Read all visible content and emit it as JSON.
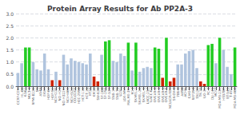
{
  "chart_data": {
    "type": "bar",
    "title": "Protein Array Results for Ab PP2A-3",
    "categories": [
      "CCRF-CEM",
      "HL-60",
      "K-562",
      "MOLT-4",
      "RPMI-8226",
      "SR",
      "A549",
      "EKVX",
      "HOP-62",
      "HOP-92",
      "NCI-H226",
      "NCI-H23",
      "NCI-H322M",
      "NCI-H460",
      "NCI-H522",
      "COLO205",
      "HCC-2998",
      "HCT-116",
      "HCT-15",
      "HT29",
      "KM12",
      "SW-620",
      "SF-268",
      "SF-295",
      "SF-539",
      "SNB-19",
      "SNB-75",
      "U251",
      "LOX-IMVI",
      "MALME-3M",
      "M14",
      "SK-MEL-2",
      "SK-MEL-28",
      "SK-MEL-5",
      "UACC-257",
      "UACC-62",
      "OVCAR-3",
      "OVCAR-4",
      "OVCAR-5",
      "OVCAR-8",
      "NCI/ADR-RES",
      "SK-OV-3",
      "786-0",
      "A498",
      "ACHN",
      "CAKI-1",
      "RXF393",
      "SN12C",
      "TK-10",
      "UO-31",
      "PC-3",
      "DU-145",
      "MCF7",
      "MDA-MB-231",
      "HS578T",
      "BT-549",
      "T-47D",
      "MDA-MB-468"
    ],
    "values": [
      0.55,
      0.95,
      1.6,
      1.6,
      1.0,
      0.7,
      0.65,
      1.35,
      0.7,
      0.25,
      0.6,
      0.25,
      1.3,
      0.9,
      1.15,
      1.05,
      1.0,
      0.95,
      0.9,
      1.35,
      0.4,
      0.2,
      1.3,
      1.85,
      1.9,
      1.05,
      1.0,
      1.35,
      1.25,
      1.8,
      0.65,
      1.8,
      0.6,
      0.75,
      0.8,
      0.75,
      1.6,
      1.55,
      0.35,
      2.0,
      0.2,
      0.35,
      0.9,
      0.9,
      1.35,
      1.45,
      1.5,
      0.75,
      0.2,
      0.1,
      1.7,
      1.75,
      0.95,
      2.0,
      1.5,
      0.8,
      0.5,
      1.6
    ],
    "colors": [
      "#b0c4de",
      "#b0c4de",
      "#22cc22",
      "#22cc22",
      "#b0c4de",
      "#b0c4de",
      "#b0c4de",
      "#b0c4de",
      "#b0c4de",
      "#cc2200",
      "#b0c4de",
      "#cc2200",
      "#b0c4de",
      "#b0c4de",
      "#b0c4de",
      "#b0c4de",
      "#b0c4de",
      "#b0c4de",
      "#b0c4de",
      "#b0c4de",
      "#cc2200",
      "#cc2200",
      "#b0c4de",
      "#22cc22",
      "#22cc22",
      "#b0c4de",
      "#b0c4de",
      "#b0c4de",
      "#b0c4de",
      "#22cc22",
      "#b0c4de",
      "#22cc22",
      "#b0c4de",
      "#b0c4de",
      "#b0c4de",
      "#b0c4de",
      "#22cc22",
      "#22cc22",
      "#cc2200",
      "#22cc22",
      "#cc2200",
      "#cc2200",
      "#b0c4de",
      "#b0c4de",
      "#b0c4de",
      "#b0c4de",
      "#b0c4de",
      "#b0c4de",
      "#cc2200",
      "#cc2200",
      "#22cc22",
      "#22cc22",
      "#b0c4de",
      "#22cc22",
      "#b0c4de",
      "#b0c4de",
      "#b0c4de",
      "#22cc22"
    ],
    "ylim": [
      0,
      3.0
    ],
    "yticks": [
      {
        "value": 0.0,
        "label": "0.0"
      },
      0.5,
      {
        "value": 1.0,
        "label": "1.0"
      },
      1.5,
      {
        "value": 2.0,
        "label": "2.0"
      },
      2.5,
      {
        "value": 3.0,
        "label": "3.0"
      }
    ],
    "grid": true
  }
}
